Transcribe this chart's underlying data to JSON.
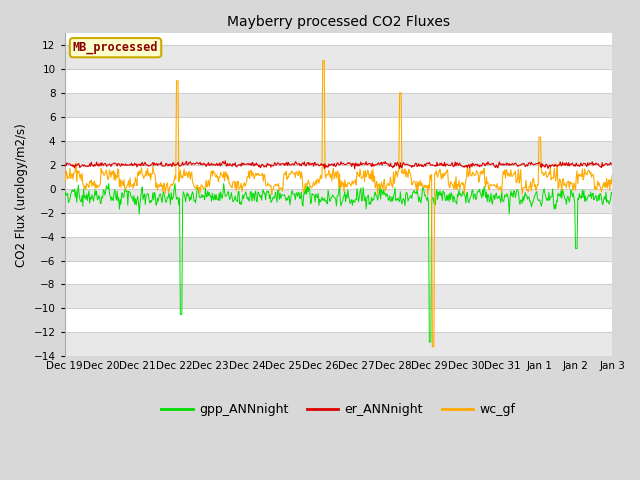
{
  "title": "Mayberry processed CO2 Fluxes",
  "ylabel": "CO2 Flux (urology/m2/s)",
  "ylim": [
    -14,
    13
  ],
  "yticks": [
    -14,
    -12,
    -10,
    -8,
    -6,
    -4,
    -2,
    0,
    2,
    4,
    6,
    8,
    10,
    12
  ],
  "fig_bg_color": "#d8d8d8",
  "plot_bg_color": "#ffffff",
  "grid_color": "#d0d0d0",
  "alt_band_color": "#e8e8e8",
  "legend_box_label": "MB_processed",
  "legend_box_facecolor": "#ffffcc",
  "legend_box_edgecolor": "#ccaa00",
  "legend_box_textcolor": "#8b0000",
  "colors": {
    "gpp_ANNnight": "#00dd00",
    "er_ANNnight": "#dd0000",
    "wc_gf": "#ffaa00"
  },
  "xtick_labels": [
    "Dec 19",
    "Dec 20",
    "Dec 21",
    "Dec 22",
    "Dec 23",
    "Dec 24",
    "Dec 25",
    "Dec 26",
    "Dec 27",
    "Dec 28",
    "Dec 29",
    "Dec 30",
    "Dec 31",
    "Jan 1",
    "Jan 2",
    "Jan 3"
  ],
  "n_points": 720,
  "seed": 42
}
